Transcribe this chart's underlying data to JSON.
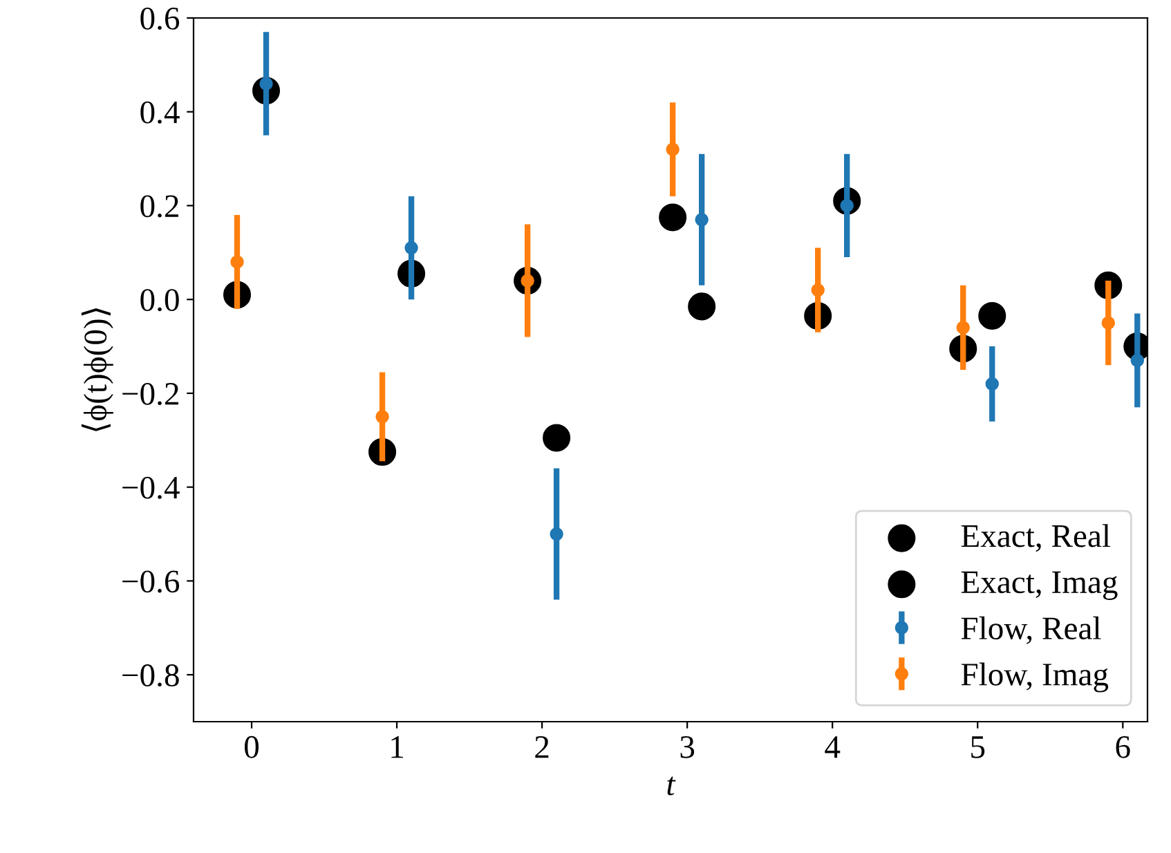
{
  "chart_data": {
    "type": "scatter",
    "xlabel": "t",
    "ylabel": "⟨ϕ(t)ϕ(0)⟩",
    "xlim": [
      -0.4,
      6.17
    ],
    "ylim": [
      -0.9,
      0.6
    ],
    "xticks": [
      0,
      1,
      2,
      3,
      4,
      5,
      6
    ],
    "yticks": [
      {
        "value": -0.8,
        "label": "−0.8"
      },
      {
        "value": -0.6,
        "label": "−0.6"
      },
      {
        "value": -0.4,
        "label": "−0.4"
      },
      {
        "value": -0.2,
        "label": "−0.2"
      },
      {
        "value": 0.0,
        "label": "0.0"
      },
      {
        "value": 0.2,
        "label": "0.2"
      },
      {
        "value": 0.4,
        "label": "0.4"
      },
      {
        "value": 0.6,
        "label": "0.6"
      }
    ],
    "grid": false,
    "legend": "bottom right",
    "marker": "circle",
    "series": [
      {
        "name": "Exact, Real",
        "color": "#000000",
        "x": [
          0.1,
          1.1,
          2.1,
          3.1,
          4.1,
          5.1,
          6.1
        ],
        "values": [
          0.445,
          0.055,
          -0.295,
          -0.015,
          0.21,
          -0.035,
          -0.1
        ]
      },
      {
        "name": "Exact, Imag",
        "color": "#000000",
        "x": [
          -0.1,
          0.9,
          1.9,
          2.9,
          3.9,
          4.9,
          5.9
        ],
        "values": [
          0.01,
          -0.325,
          0.04,
          0.175,
          -0.035,
          -0.105,
          0.03
        ]
      },
      {
        "name": "Flow, Real",
        "color": "#1f77b4",
        "x": [
          0.1,
          1.1,
          2.1,
          3.1,
          4.1,
          5.1,
          6.1
        ],
        "values": [
          0.46,
          0.11,
          -0.5,
          0.17,
          0.2,
          -0.18,
          -0.13
        ],
        "errors": [
          0.11,
          0.11,
          0.14,
          0.14,
          0.11,
          0.08,
          0.1
        ]
      },
      {
        "name": "Flow, Imag",
        "color": "#ff7f0e",
        "x": [
          -0.1,
          0.9,
          1.9,
          2.9,
          3.9,
          4.9,
          5.9
        ],
        "values": [
          0.08,
          -0.25,
          0.04,
          0.32,
          0.02,
          -0.06,
          -0.05
        ],
        "errors": [
          0.1,
          0.095,
          0.12,
          0.1,
          0.09,
          0.09,
          0.09
        ]
      }
    ]
  }
}
